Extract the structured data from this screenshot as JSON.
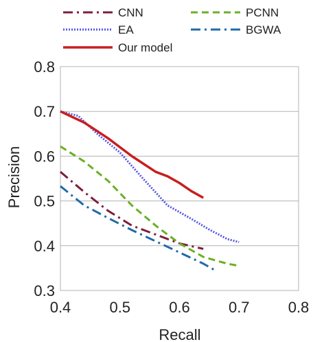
{
  "chart_data": {
    "type": "line",
    "title": "",
    "xlabel": "Recall",
    "ylabel": "Precision",
    "xlim": [
      0.4,
      0.8
    ],
    "ylim": [
      0.3,
      0.8
    ],
    "x_ticks": [
      "0.4",
      "0.5",
      "0.6",
      "0.7",
      "0.8"
    ],
    "y_ticks": [
      "0.3",
      "0.4",
      "0.5",
      "0.6",
      "0.7",
      "0.8"
    ],
    "grid": "horizontal",
    "legend_position": "top",
    "series": [
      {
        "name": "CNN",
        "color": "#7f1d3a",
        "dash": "dash-dot",
        "points": [
          [
            0.4,
            0.565
          ],
          [
            0.44,
            0.52
          ],
          [
            0.48,
            0.478
          ],
          [
            0.52,
            0.445
          ],
          [
            0.56,
            0.425
          ],
          [
            0.6,
            0.405
          ],
          [
            0.64,
            0.393
          ]
        ]
      },
      {
        "name": "PCNN",
        "color": "#6ab023",
        "dash": "dashed",
        "points": [
          [
            0.4,
            0.622
          ],
          [
            0.44,
            0.588
          ],
          [
            0.48,
            0.545
          ],
          [
            0.52,
            0.49
          ],
          [
            0.56,
            0.445
          ],
          [
            0.6,
            0.405
          ],
          [
            0.64,
            0.375
          ],
          [
            0.68,
            0.36
          ],
          [
            0.7,
            0.355
          ]
        ]
      },
      {
        "name": "EA",
        "color": "#5555e6",
        "dash": "dotted",
        "points": [
          [
            0.4,
            0.7
          ],
          [
            0.43,
            0.69
          ],
          [
            0.46,
            0.652
          ],
          [
            0.5,
            0.608
          ],
          [
            0.54,
            0.548
          ],
          [
            0.58,
            0.49
          ],
          [
            0.62,
            0.46
          ],
          [
            0.65,
            0.436
          ],
          [
            0.68,
            0.415
          ],
          [
            0.7,
            0.408
          ]
        ]
      },
      {
        "name": "BGWA",
        "color": "#1f6aa8",
        "dash": "dash-dot",
        "points": [
          [
            0.4,
            0.533
          ],
          [
            0.44,
            0.49
          ],
          [
            0.48,
            0.462
          ],
          [
            0.52,
            0.435
          ],
          [
            0.56,
            0.41
          ],
          [
            0.6,
            0.385
          ],
          [
            0.64,
            0.36
          ],
          [
            0.66,
            0.345
          ]
        ]
      },
      {
        "name": "Our model",
        "color": "#c81e1e",
        "dash": "solid",
        "points": [
          [
            0.4,
            0.7
          ],
          [
            0.44,
            0.675
          ],
          [
            0.48,
            0.64
          ],
          [
            0.52,
            0.6
          ],
          [
            0.56,
            0.565
          ],
          [
            0.58,
            0.555
          ],
          [
            0.6,
            0.54
          ],
          [
            0.62,
            0.522
          ],
          [
            0.64,
            0.507
          ]
        ]
      }
    ]
  }
}
